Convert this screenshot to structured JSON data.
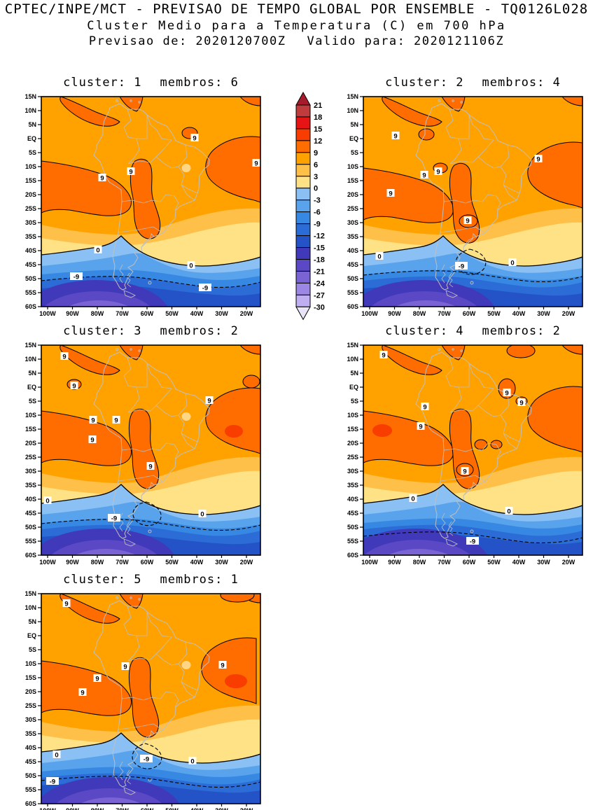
{
  "header": {
    "line1": "CPTEC/INPE/MCT - PREVISAO DE TEMPO GLOBAL POR ENSEMBLE - TQ0126L028",
    "line2": "Cluster Medio para a Temperatura (C) em 700 hPa",
    "line3_left": "Previsao de: 2020120700Z",
    "line3_right": "Valido para: 2020121106Z"
  },
  "chart_data": {
    "type": "heatmap",
    "subtype": "filled-contour-map-multipanel",
    "variable": "Cluster Medio para a Temperatura (C) em 700 hPa",
    "model_tag": "TQ0126L028",
    "forecast_init": "2020120700Z",
    "forecast_valid": "2020121106Z",
    "x_ticks": [
      "100W",
      "90W",
      "80W",
      "70W",
      "60W",
      "50W",
      "40W",
      "30W",
      "20W"
    ],
    "y_ticks": [
      "15N",
      "10N",
      "5N",
      "EQ",
      "5S",
      "10S",
      "15S",
      "20S",
      "25S",
      "30S",
      "35S",
      "40S",
      "45S",
      "50S",
      "55S",
      "60S"
    ],
    "x_range_deg_west": [
      100,
      12
    ],
    "y_range_deg_lat": [
      15,
      -60
    ],
    "labeled_contours": [
      9,
      0,
      -9
    ],
    "contour_interval": 3,
    "colorbar": {
      "units": "C",
      "position": "top-center-between-panel-1-and-2",
      "tick_labels": [
        "21",
        "18",
        "15",
        "12",
        "9",
        "6",
        "3",
        "0",
        "-3",
        "-6",
        "-9",
        "-12",
        "-15",
        "-18",
        "-21",
        "-24",
        "-27",
        "-30"
      ],
      "arrow_top_color": "#A51B2B",
      "arrow_bottom_color": "#EAE4F9",
      "box_colors": [
        "#C03C3C",
        "#E61414",
        "#F93C00",
        "#FF6C00",
        "#FFA200",
        "#FFC04A",
        "#FFE285",
        "#8AC0F4",
        "#59A3EC",
        "#3788E2",
        "#2B6CD6",
        "#2453C8",
        "#4039BA",
        "#5A48C4",
        "#7A63D2",
        "#9D87E4",
        "#BFAEF0"
      ]
    },
    "map_palette": {
      "band_6_9": "#FFA200",
      "band_9_12": "#FF6C00",
      "band_12_15": "#F93C00",
      "band_3_6": "#FFC04A",
      "band_0_3": "#FFE285",
      "band_m3_0": "#8AC0F4",
      "band_m6_m3": "#59A3EC",
      "band_m9_m6": "#3788E2",
      "band_m12_m9": "#2B6CD6",
      "band_m15_m12": "#2453C8",
      "band_m18_m15": "#4039BA",
      "band_m21_m18": "#5A48C4",
      "band_m24_m21": "#7A63D2",
      "band_m27_m24": "#9D87E4",
      "warm_spot": "#FFD685",
      "coastline": "#BFBFBF",
      "contour": "#000000"
    },
    "panels": [
      {
        "cluster": 1,
        "membros": 6,
        "title_left": "cluster: 1",
        "title_right": "membros: 6",
        "contour_labels": [
          {
            "text": "9",
            "x": 219,
            "y": 59
          },
          {
            "text": "9",
            "x": 307,
            "y": 95
          },
          {
            "text": "9",
            "x": 128,
            "y": 107
          },
          {
            "text": "9",
            "x": 87,
            "y": 116
          },
          {
            "text": "0",
            "x": 81,
            "y": 219
          },
          {
            "text": "0",
            "x": 214,
            "y": 241
          },
          {
            "text": "-9",
            "x": 50,
            "y": 257
          },
          {
            "text": "-9",
            "x": 234,
            "y": 273
          }
        ]
      },
      {
        "cluster": 2,
        "membros": 4,
        "title_left": "cluster: 2",
        "title_right": "membros: 4",
        "contour_labels": [
          {
            "text": "9",
            "x": 46,
            "y": 56
          },
          {
            "text": "9",
            "x": 250,
            "y": 89
          },
          {
            "text": "9",
            "x": 107,
            "y": 107
          },
          {
            "text": "9",
            "x": 87,
            "y": 112
          },
          {
            "text": "9",
            "x": 39,
            "y": 138
          },
          {
            "text": "9",
            "x": 149,
            "y": 177
          },
          {
            "text": "0",
            "x": 23,
            "y": 228
          },
          {
            "text": "0",
            "x": 213,
            "y": 237
          },
          {
            "text": "-9",
            "x": 140,
            "y": 242
          }
        ]
      },
      {
        "cluster": 3,
        "membros": 2,
        "title_left": "cluster: 3",
        "title_right": "membros: 2",
        "contour_labels": [
          {
            "text": "9",
            "x": 33,
            "y": 16
          },
          {
            "text": "9",
            "x": 47,
            "y": 58
          },
          {
            "text": "9",
            "x": 240,
            "y": 79
          },
          {
            "text": "9",
            "x": 107,
            "y": 107
          },
          {
            "text": "9",
            "x": 74,
            "y": 107
          },
          {
            "text": "9",
            "x": 73,
            "y": 135
          },
          {
            "text": "9",
            "x": 156,
            "y": 173
          },
          {
            "text": "0",
            "x": 9,
            "y": 222
          },
          {
            "text": "0",
            "x": 230,
            "y": 241
          },
          {
            "text": "-9",
            "x": 104,
            "y": 247
          }
        ]
      },
      {
        "cluster": 4,
        "membros": 2,
        "title_left": "cluster: 4",
        "title_right": "membros: 2",
        "contour_labels": [
          {
            "text": "9",
            "x": 29,
            "y": 14
          },
          {
            "text": "9",
            "x": 205,
            "y": 68
          },
          {
            "text": "9",
            "x": 226,
            "y": 82
          },
          {
            "text": "9",
            "x": 88,
            "y": 88
          },
          {
            "text": "9",
            "x": 82,
            "y": 116
          },
          {
            "text": "9",
            "x": 145,
            "y": 180
          },
          {
            "text": "0",
            "x": 71,
            "y": 219
          },
          {
            "text": "0",
            "x": 208,
            "y": 237
          },
          {
            "text": "-9",
            "x": 156,
            "y": 280
          }
        ]
      },
      {
        "cluster": 5,
        "membros": 1,
        "title_left": "cluster: 5",
        "title_right": "membros: 1",
        "contour_labels": [
          {
            "text": "9",
            "x": 36,
            "y": 14
          },
          {
            "text": "9",
            "x": 120,
            "y": 104
          },
          {
            "text": "9",
            "x": 259,
            "y": 102
          },
          {
            "text": "9",
            "x": 80,
            "y": 121
          },
          {
            "text": "9",
            "x": 59,
            "y": 141
          },
          {
            "text": "0",
            "x": 22,
            "y": 230
          },
          {
            "text": "0",
            "x": 216,
            "y": 239
          },
          {
            "text": "-9",
            "x": 150,
            "y": 236
          },
          {
            "text": "-9",
            "x": 16,
            "y": 268
          }
        ]
      }
    ]
  }
}
